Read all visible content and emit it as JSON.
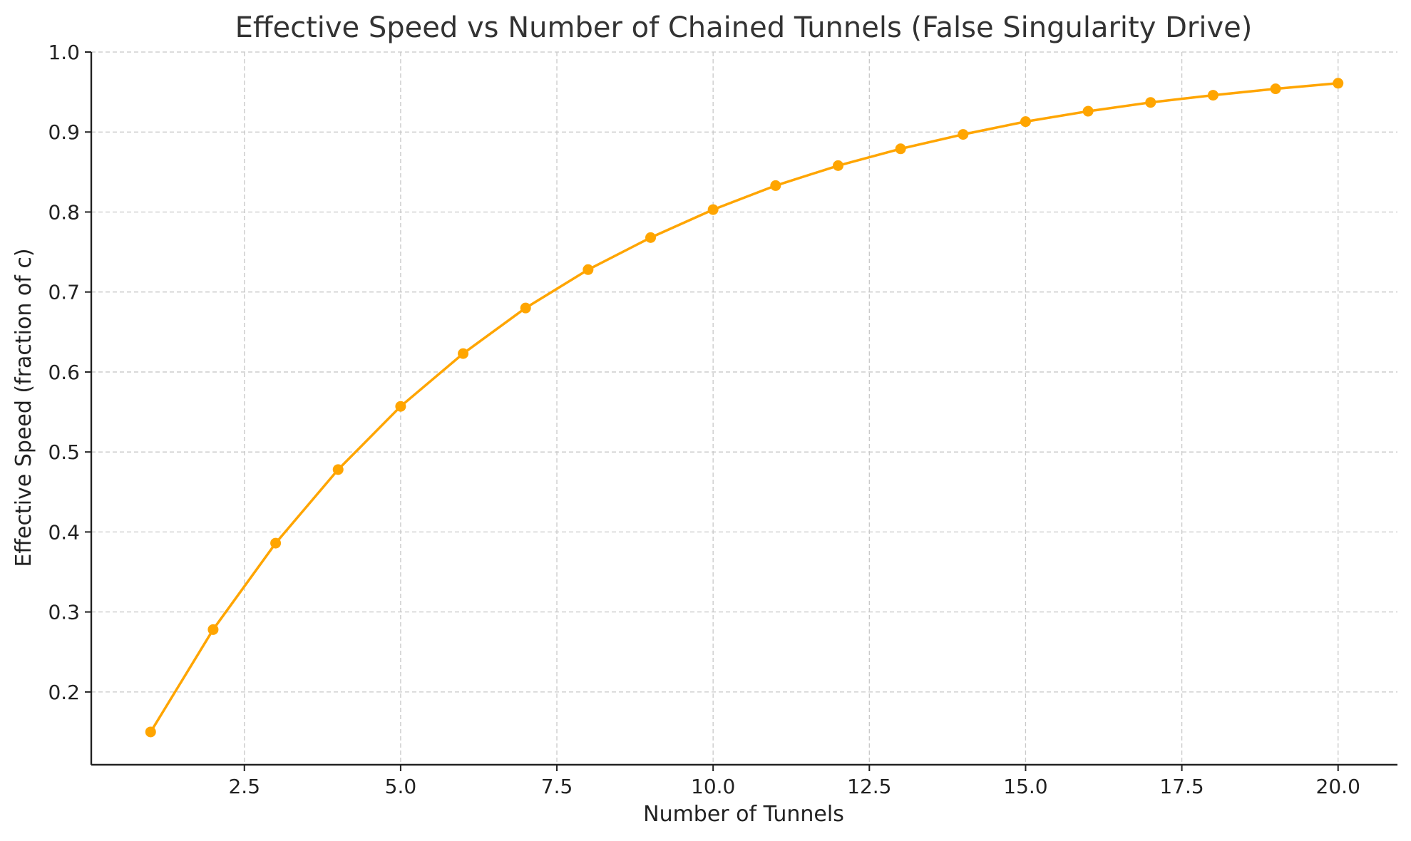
{
  "chart_data": {
    "type": "line",
    "title": "Effective Speed vs Number of Chained Tunnels (False Singularity Drive)",
    "xlabel": "Number of Tunnels",
    "ylabel": "Effective Speed (fraction of c)",
    "xlim": [
      0.05,
      20.95
    ],
    "ylim": [
      0.109,
      1.0
    ],
    "x_ticks": [
      "2.5",
      "5.0",
      "7.5",
      "10.0",
      "12.5",
      "15.0",
      "17.5",
      "20.0"
    ],
    "y_ticks": [
      "0.2",
      "0.3",
      "0.4",
      "0.5",
      "0.6",
      "0.7",
      "0.8",
      "0.9",
      "1.0"
    ],
    "grid": true,
    "color": "#FFA500",
    "series": [
      {
        "x": [
          1,
          2,
          3,
          4,
          5,
          6,
          7,
          8,
          9,
          10,
          11,
          12,
          13,
          14,
          15,
          16,
          17,
          18,
          19,
          20
        ],
        "values": [
          0.15,
          0.278,
          0.386,
          0.478,
          0.557,
          0.623,
          0.68,
          0.728,
          0.768,
          0.803,
          0.833,
          0.858,
          0.879,
          0.897,
          0.913,
          0.926,
          0.937,
          0.946,
          0.954,
          0.961
        ]
      }
    ]
  }
}
